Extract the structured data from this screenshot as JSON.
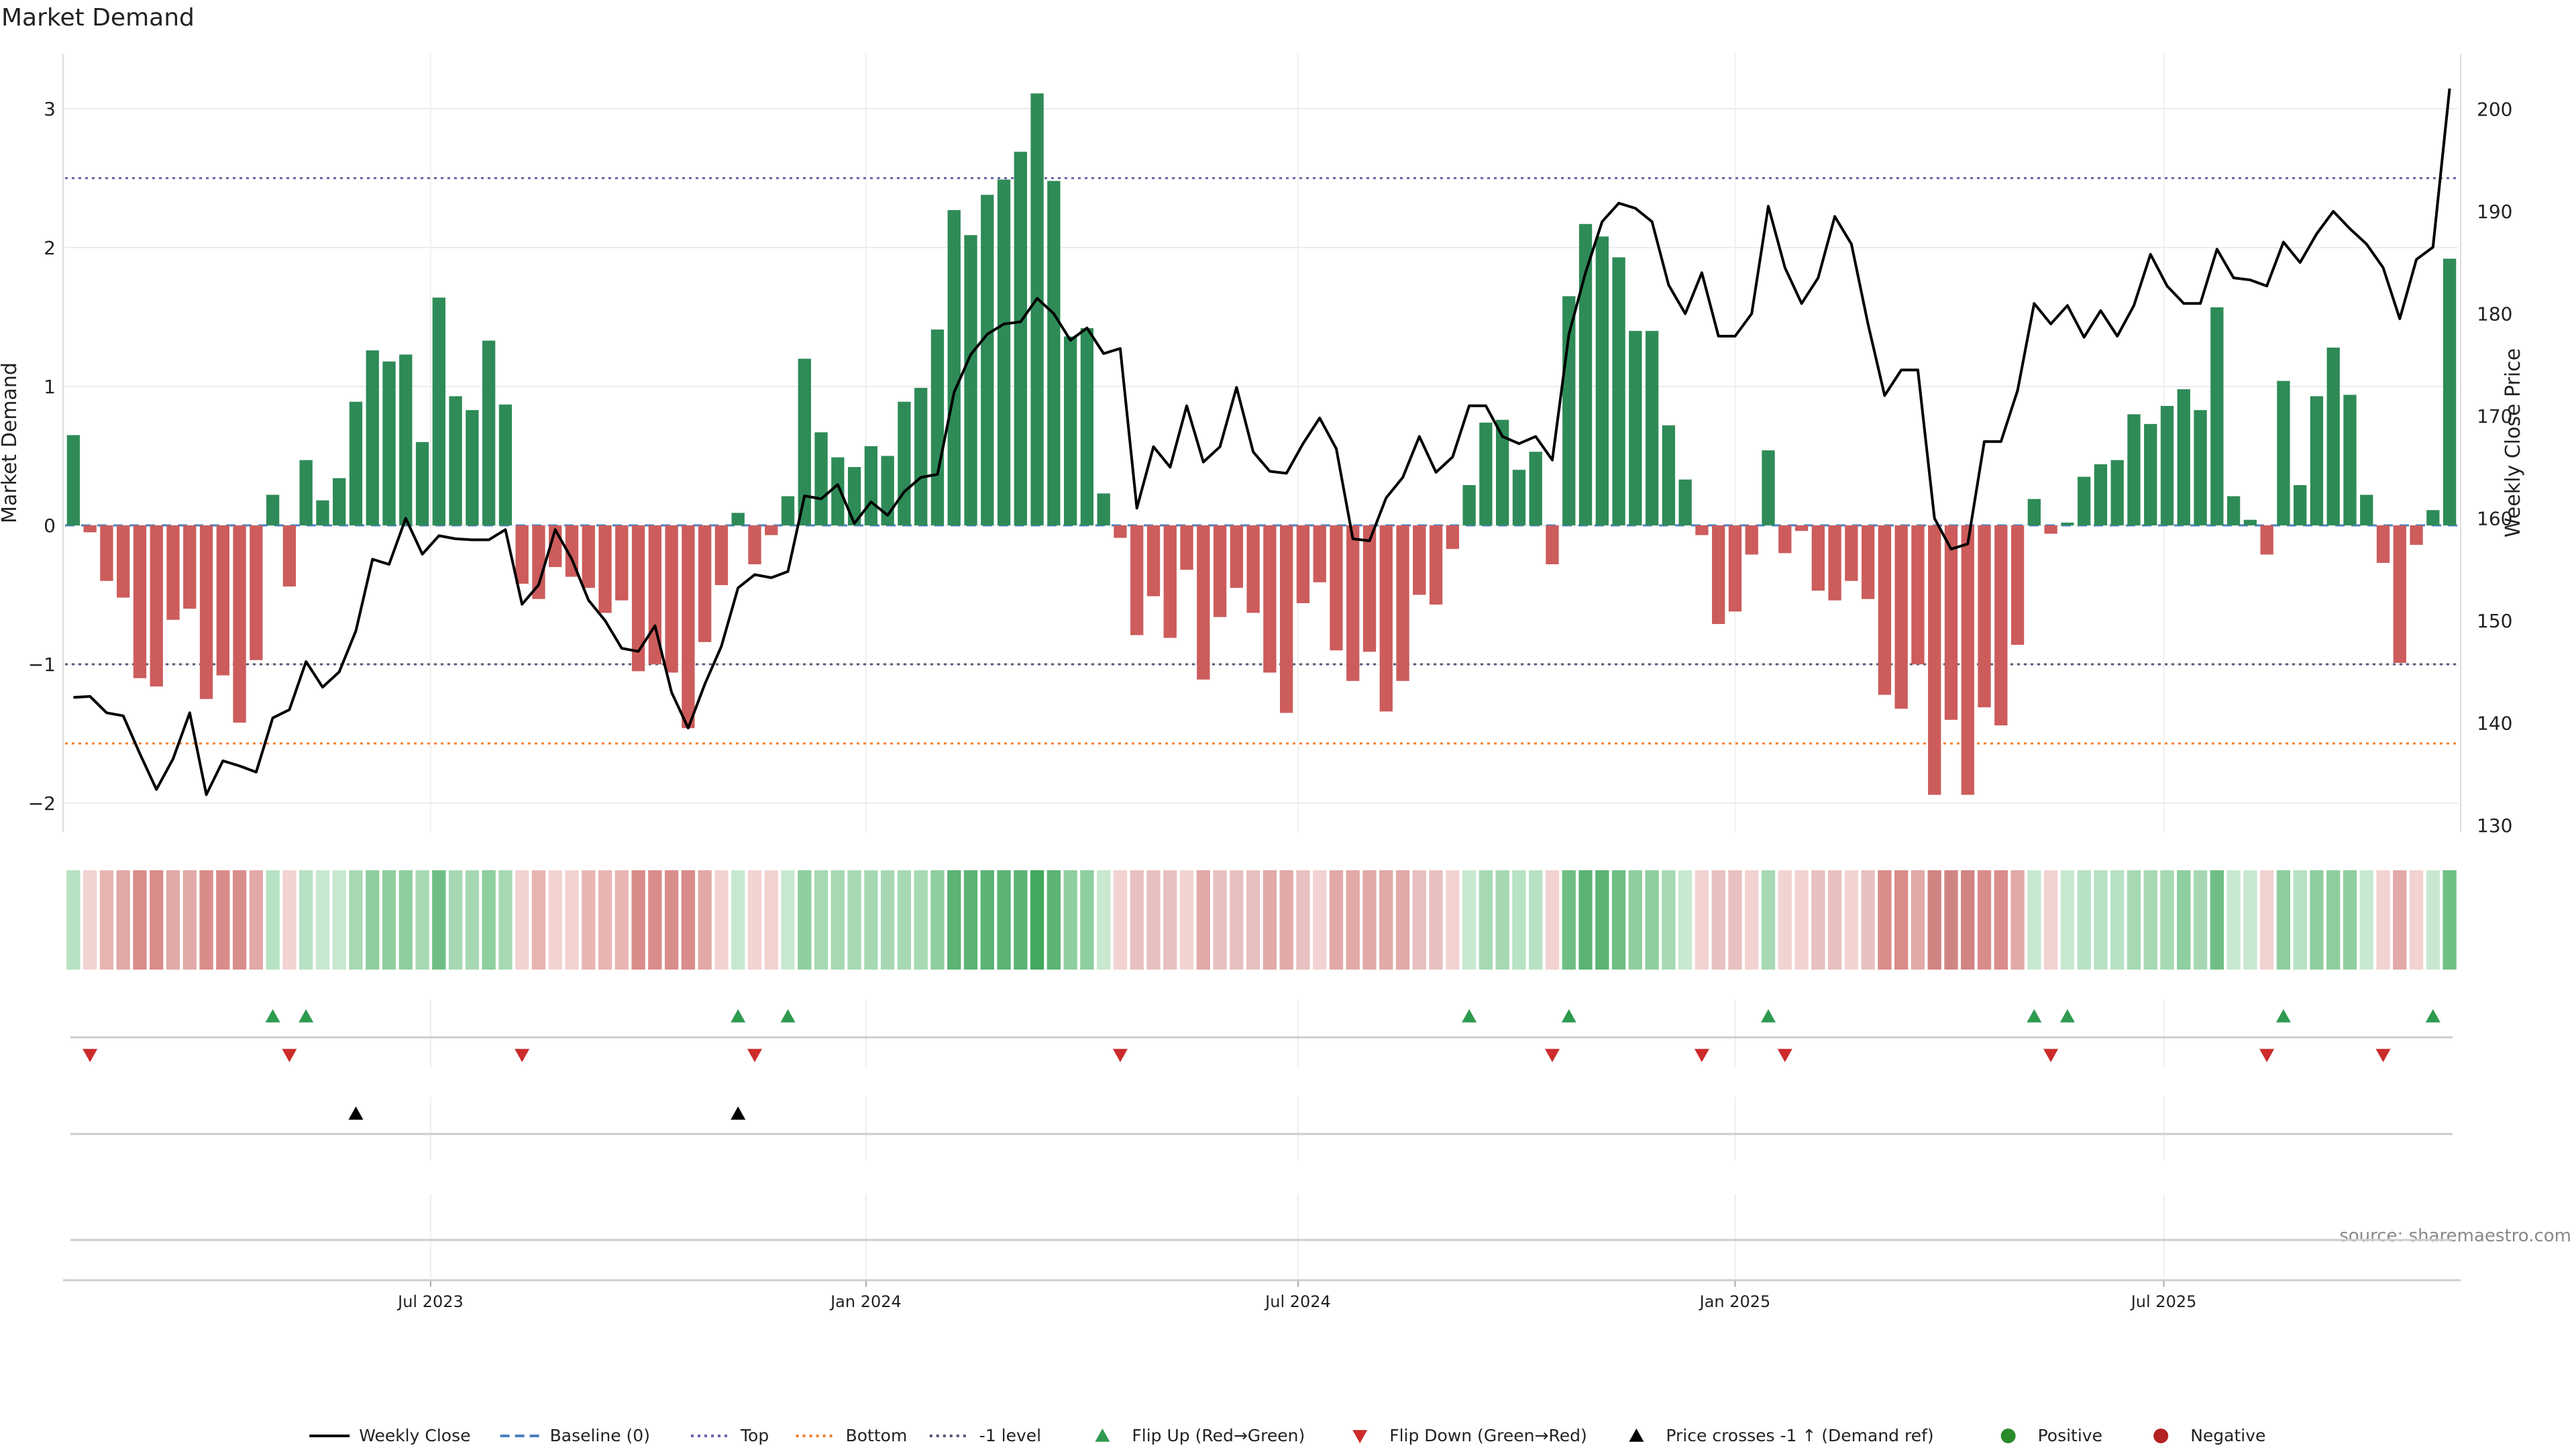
{
  "chart_data": {
    "type": "bar",
    "title": "Market Demand",
    "ylabel_left": "Market Demand",
    "ylabel_right": "Weekly Close Price",
    "ylim_left": [
      -2.2,
      3.4
    ],
    "ylim_right": [
      129,
      203
    ],
    "yticks_left": [
      -2,
      -1,
      0,
      1,
      2,
      3
    ],
    "yticks_right": [
      130,
      140,
      150,
      160,
      170,
      180,
      190,
      200
    ],
    "x_tick_labels": [
      {
        "label": "Jul 2023",
        "index": 21.5
      },
      {
        "label": "Jan 2024",
        "index": 47.7
      },
      {
        "label": "Jul 2024",
        "index": 73.7
      },
      {
        "label": "Jan 2025",
        "index": 100
      },
      {
        "label": "Jul 2025",
        "index": 125.8
      }
    ],
    "reference_lines": {
      "top": 2.5,
      "bottom": -1.57,
      "minus_one": -1,
      "baseline": 0
    },
    "demand": [
      0.65,
      -0.05,
      -0.4,
      -0.52,
      -1.1,
      -1.16,
      -0.68,
      -0.6,
      -1.25,
      -1.08,
      -1.42,
      -0.97,
      0.22,
      -0.44,
      0.47,
      0.18,
      0.34,
      0.89,
      1.26,
      1.18,
      1.23,
      0.6,
      1.64,
      0.93,
      0.83,
      1.33,
      0.87,
      -0.42,
      -0.53,
      -0.3,
      -0.37,
      -0.45,
      -0.63,
      -0.54,
      -1.05,
      -1.0,
      -1.06,
      -1.46,
      -0.84,
      -0.43,
      0.09,
      -0.28,
      -0.07,
      0.21,
      1.2,
      0.67,
      0.49,
      0.42,
      0.57,
      0.5,
      0.89,
      0.99,
      1.41,
      2.27,
      2.09,
      2.38,
      2.49,
      2.69,
      3.11,
      2.48,
      1.36,
      1.42,
      0.23,
      -0.09,
      -0.79,
      -0.51,
      -0.81,
      -0.32,
      -1.11,
      -0.66,
      -0.45,
      -0.63,
      -1.06,
      -1.35,
      -0.56,
      -0.41,
      -0.9,
      -1.12,
      -0.91,
      -1.34,
      -1.12,
      -0.5,
      -0.57,
      -0.17,
      0.29,
      0.74,
      0.76,
      0.4,
      0.53,
      -0.28,
      1.65,
      2.17,
      2.08,
      1.93,
      1.4,
      1.4,
      0.72,
      0.33,
      -0.07,
      -0.71,
      -0.62,
      -0.21,
      0.54,
      -0.2,
      -0.04,
      -0.47,
      -0.54,
      -0.4,
      -0.53,
      -1.22,
      -1.32,
      -1.0,
      -1.94,
      -1.4,
      -1.94,
      -1.31,
      -1.44,
      -0.86,
      0.19,
      -0.06,
      0.02,
      0.35,
      0.44,
      0.47,
      0.8,
      0.73,
      0.86,
      0.98,
      0.83,
      1.57,
      0.21,
      0.04,
      -0.21,
      1.04,
      0.29,
      0.93,
      1.28,
      0.94,
      0.22,
      -0.27,
      -0.99,
      -0.14,
      0.11,
      1.92
    ],
    "price": [
      142.5,
      142.6,
      141.0,
      140.7,
      137.0,
      133.5,
      136.5,
      141.0,
      133.0,
      136.3,
      135.8,
      135.2,
      140.5,
      141.3,
      146.0,
      143.5,
      145.0,
      149.0,
      156.0,
      155.5,
      160.0,
      156.5,
      158.3,
      158.0,
      157.9,
      157.9,
      158.9,
      151.6,
      153.5,
      158.9,
      156.0,
      152.0,
      150.0,
      147.3,
      147.0,
      149.5,
      143.0,
      139.5,
      143.8,
      147.5,
      153.2,
      154.5,
      154.2,
      154.8,
      162.2,
      161.9,
      163.3,
      159.5,
      161.6,
      160.3,
      162.6,
      164.0,
      164.3,
      172.3,
      176.0,
      178.0,
      179.0,
      179.2,
      181.5,
      180.0,
      177.4,
      178.6,
      176.1,
      176.6,
      161.0,
      167.0,
      165.0,
      171.0,
      165.5,
      167.0,
      172.8,
      166.5,
      164.6,
      164.4,
      167.3,
      169.8,
      166.8,
      158.0,
      157.8,
      162.0,
      164.0,
      168.0,
      164.5,
      166.0,
      171.0,
      171.0,
      168.0,
      167.3,
      168.0,
      165.7,
      178.0,
      184.0,
      189.0,
      190.8,
      190.3,
      189.0,
      182.8,
      180.0,
      184.0,
      177.8,
      177.8,
      180.0,
      190.5,
      184.5,
      181.0,
      183.5,
      189.5,
      186.8,
      179.0,
      172.0,
      174.5,
      174.5,
      160.0,
      157.0,
      157.5,
      167.5,
      167.5,
      172.5,
      181.0,
      179.0,
      180.8,
      177.7,
      180.3,
      177.8,
      180.8,
      185.8,
      182.7,
      181.0,
      181.0,
      186.3,
      183.5,
      183.3,
      182.7,
      187.0,
      185.0,
      187.8,
      190.0,
      188.3,
      186.8,
      184.5,
      179.5,
      185.3,
      186.5,
      202.0
    ],
    "strip_colors": [
      "#b7e2c4",
      "#f2d3d2",
      "#e8b5b3",
      "#e1a9a7",
      "#d98d8b",
      "#d98d8b",
      "#e1a9a7",
      "#e1a9a7",
      "#d98d8b",
      "#d98d8b",
      "#d98d8b",
      "#e1a9a7",
      "#b7e2c4",
      "#f2d3d2",
      "#b7e2c4",
      "#c8e8d0",
      "#c8e8d0",
      "#a6d9b3",
      "#8fce9f",
      "#8fce9f",
      "#8fce9f",
      "#a6d9b3",
      "#6fbf84",
      "#a6d9b3",
      "#a6d9b3",
      "#8fce9f",
      "#a6d9b3",
      "#f2d3d2",
      "#e8b5b3",
      "#f2d3d2",
      "#f2d3d2",
      "#e8b5b3",
      "#e8b5b3",
      "#e8b5b3",
      "#d98d8b",
      "#d98d8b",
      "#d98d8b",
      "#d98d8b",
      "#e1a9a7",
      "#f2d3d2",
      "#c8e8d0",
      "#f2d3d2",
      "#f2d3d2",
      "#c8e8d0",
      "#8fce9f",
      "#a6d9b3",
      "#a6d9b3",
      "#a6d9b3",
      "#a6d9b3",
      "#a6d9b3",
      "#a6d9b3",
      "#a6d9b3",
      "#8fce9f",
      "#5bb374",
      "#5bb374",
      "#5bb374",
      "#5bb374",
      "#5bb374",
      "#43a85f",
      "#5bb374",
      "#8fce9f",
      "#8fce9f",
      "#c8e8d0",
      "#f2d3d2",
      "#e8c0bf",
      "#e8c0bf",
      "#e8c0bf",
      "#f2d3d2",
      "#e1a9a7",
      "#e8c0bf",
      "#e8c0bf",
      "#e8c0bf",
      "#e1a9a7",
      "#e1a9a7",
      "#e8c0bf",
      "#f2d3d2",
      "#e1a9a7",
      "#e1a9a7",
      "#e1a9a7",
      "#e1a9a7",
      "#e1a9a7",
      "#e8c0bf",
      "#e8c0bf",
      "#f2d3d2",
      "#c8e8d0",
      "#a6d9b3",
      "#a6d9b3",
      "#b7e2c4",
      "#b7e2c4",
      "#f2d3d2",
      "#6fbf84",
      "#5bb374",
      "#5bb374",
      "#6fbf84",
      "#8fce9f",
      "#8fce9f",
      "#a6d9b3",
      "#c8e8d0",
      "#f2d3d2",
      "#e8c0bf",
      "#e8c0bf",
      "#f2d3d2",
      "#a6d9b3",
      "#f2d3d2",
      "#f2d3d2",
      "#e8c0bf",
      "#e8c0bf",
      "#f2d3d2",
      "#e8c0bf",
      "#d98d8b",
      "#d98d8b",
      "#e1a9a7",
      "#d08583",
      "#d08583",
      "#d08583",
      "#d98d8b",
      "#d98d8b",
      "#e1a9a7",
      "#c8e8d0",
      "#f2d3d2",
      "#c8e8d0",
      "#b7e2c4",
      "#b7e2c4",
      "#b7e2c4",
      "#a6d9b3",
      "#a6d9b3",
      "#a6d9b3",
      "#8fce9f",
      "#a6d9b3",
      "#6fbf84",
      "#c8e8d0",
      "#c8e8d0",
      "#f2d3d2",
      "#8fce9f",
      "#b7e2c4",
      "#8fce9f",
      "#8fce9f",
      "#8fce9f",
      "#c8e8d0",
      "#f2d3d2",
      "#e1a9a7",
      "#f2d3d2",
      "#c8e8d0",
      "#6fbf84"
    ],
    "flip_up_indices": [
      12,
      14,
      40,
      43,
      84,
      90,
      102,
      118,
      120,
      133,
      142
    ],
    "flip_down_indices": [
      1,
      13,
      27,
      41,
      63,
      89,
      98,
      103,
      119,
      132,
      139
    ],
    "price_cross_indices": [
      17,
      40
    ],
    "legend": [
      {
        "label": "Weekly Close",
        "kind": "line",
        "color": "#000000"
      },
      {
        "label": "Baseline (0)",
        "kind": "dash",
        "color": "#4a7fc1"
      },
      {
        "label": "Top",
        "kind": "dot",
        "color": "#6666aa"
      },
      {
        "label": "Bottom",
        "kind": "dot",
        "color": "#f08030"
      },
      {
        "label": "-1 level",
        "kind": "dot",
        "color": "#555577"
      },
      {
        "label": "Flip Up (Red→Green)",
        "kind": "tri-up",
        "color": "#2e9a4f"
      },
      {
        "label": "Flip Down (Green→Red)",
        "kind": "tri-down",
        "color": "#cc2b2b"
      },
      {
        "label": "Price crosses -1 ↑ (Demand ref)",
        "kind": "tri-up",
        "color": "#000000"
      },
      {
        "label": "Positive",
        "kind": "dot-marker",
        "color": "#2a8a2a"
      },
      {
        "label": "Negative",
        "kind": "dot-marker",
        "color": "#b22222"
      }
    ],
    "source": "source: sharemaestro.com",
    "colors": {
      "positive_bar": "#2e8b57",
      "negative_bar": "#cd5c5c",
      "price_line": "#000000"
    }
  }
}
